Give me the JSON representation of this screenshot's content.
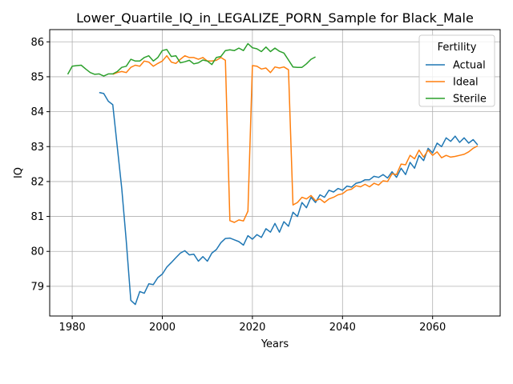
{
  "chart_data": {
    "type": "line",
    "title": "Lower_Quartile_IQ_in_LEGALIZE_PORN_Sample for Black_Male",
    "xlabel": "Years",
    "ylabel": "IQ",
    "xlim": [
      1975,
      2075
    ],
    "ylim": [
      78.15,
      86.35
    ],
    "xticks": [
      1980,
      2000,
      2020,
      2040,
      2060
    ],
    "yticks": [
      79,
      80,
      81,
      82,
      83,
      84,
      85,
      86
    ],
    "grid": true,
    "legend": {
      "title": "Fertility",
      "position": "top-right"
    },
    "series": [
      {
        "name": "Actual",
        "color": "#1f77b4",
        "x": [
          1986,
          1987,
          1988,
          1989,
          1990,
          1991,
          1992,
          1993,
          1994,
          1995,
          1996,
          1997,
          1998,
          1999,
          2000,
          2001,
          2002,
          2003,
          2004,
          2005,
          2006,
          2007,
          2008,
          2009,
          2010,
          2011,
          2012,
          2013,
          2014,
          2015,
          2016,
          2017,
          2018,
          2019,
          2020,
          2021,
          2022,
          2023,
          2024,
          2025,
          2026,
          2027,
          2028,
          2029,
          2030,
          2031,
          2032,
          2033,
          2034,
          2035,
          2036,
          2037,
          2038,
          2039,
          2040,
          2041,
          2042,
          2043,
          2044,
          2045,
          2046,
          2047,
          2048,
          2049,
          2050,
          2051,
          2052,
          2053,
          2054,
          2055,
          2056,
          2057,
          2058,
          2059,
          2060,
          2061,
          2062,
          2063,
          2064,
          2065,
          2066,
          2067,
          2068,
          2069,
          2070
        ],
        "y": [
          84.55,
          84.52,
          84.3,
          84.2,
          83.0,
          81.8,
          80.3,
          78.6,
          78.48,
          78.85,
          78.8,
          79.07,
          79.05,
          79.25,
          79.35,
          79.55,
          79.68,
          79.82,
          79.95,
          80.02,
          79.9,
          79.92,
          79.72,
          79.85,
          79.72,
          79.95,
          80.05,
          80.25,
          80.37,
          80.38,
          80.33,
          80.28,
          80.18,
          80.45,
          80.35,
          80.48,
          80.4,
          80.65,
          80.55,
          80.8,
          80.55,
          80.85,
          80.72,
          81.12,
          81.0,
          81.4,
          81.25,
          81.55,
          81.4,
          81.62,
          81.55,
          81.75,
          81.7,
          81.8,
          81.75,
          81.87,
          81.84,
          81.95,
          81.98,
          82.05,
          82.05,
          82.15,
          82.12,
          82.2,
          82.1,
          82.28,
          82.12,
          82.38,
          82.2,
          82.55,
          82.38,
          82.75,
          82.6,
          82.95,
          82.82,
          83.1,
          83.0,
          83.25,
          83.15,
          83.3,
          83.12,
          83.25,
          83.1,
          83.2,
          83.05
        ]
      },
      {
        "name": "Ideal",
        "color": "#ff7f0e",
        "x": [
          1989,
          1990,
          1991,
          1992,
          1993,
          1994,
          1995,
          1996,
          1997,
          1998,
          1999,
          2000,
          2001,
          2002,
          2003,
          2004,
          2005,
          2006,
          2007,
          2008,
          2009,
          2010,
          2011,
          2012,
          2013,
          2014,
          2015,
          2016,
          2017,
          2018,
          2019,
          2020,
          2021,
          2022,
          2023,
          2024,
          2025,
          2026,
          2027,
          2028,
          2029,
          2030,
          2031,
          2032,
          2033,
          2034,
          2035,
          2036,
          2037,
          2038,
          2039,
          2040,
          2041,
          2042,
          2043,
          2044,
          2045,
          2046,
          2047,
          2048,
          2049,
          2050,
          2051,
          2052,
          2053,
          2054,
          2055,
          2056,
          2057,
          2058,
          2059,
          2060,
          2061,
          2062,
          2063,
          2064,
          2065,
          2066,
          2067,
          2068,
          2069,
          2070
        ],
        "y": [
          85.07,
          85.12,
          85.15,
          85.12,
          85.27,
          85.33,
          85.3,
          85.45,
          85.42,
          85.3,
          85.38,
          85.45,
          85.6,
          85.42,
          85.38,
          85.5,
          85.6,
          85.55,
          85.55,
          85.5,
          85.55,
          85.45,
          85.45,
          85.47,
          85.55,
          85.47,
          80.88,
          80.83,
          80.9,
          80.87,
          81.15,
          85.32,
          85.3,
          85.22,
          85.25,
          85.12,
          85.28,
          85.25,
          85.28,
          85.2,
          81.33,
          81.4,
          81.55,
          81.5,
          81.6,
          81.45,
          81.5,
          81.4,
          81.5,
          81.55,
          81.62,
          81.65,
          81.75,
          81.78,
          81.88,
          81.85,
          81.92,
          81.85,
          81.95,
          81.9,
          82.02,
          82.0,
          82.22,
          82.2,
          82.5,
          82.48,
          82.75,
          82.65,
          82.9,
          82.7,
          82.9,
          82.75,
          82.85,
          82.68,
          82.75,
          82.7,
          82.72,
          82.75,
          82.78,
          82.85,
          82.95,
          83.02
        ]
      },
      {
        "name": "Sterile",
        "color": "#2ca02c",
        "x": [
          1979,
          1980,
          1981,
          1982,
          1983,
          1984,
          1985,
          1986,
          1987,
          1988,
          1989,
          1990,
          1991,
          1992,
          1993,
          1994,
          1995,
          1996,
          1997,
          1998,
          1999,
          2000,
          2001,
          2002,
          2003,
          2004,
          2005,
          2006,
          2007,
          2008,
          2009,
          2010,
          2011,
          2012,
          2013,
          2014,
          2015,
          2016,
          2017,
          2018,
          2019,
          2020,
          2021,
          2022,
          2023,
          2024,
          2025,
          2026,
          2027,
          2028,
          2029,
          2030,
          2031,
          2032,
          2033,
          2034
        ],
        "y": [
          85.07,
          85.3,
          85.32,
          85.33,
          85.22,
          85.12,
          85.07,
          85.08,
          85.02,
          85.08,
          85.08,
          85.15,
          85.27,
          85.3,
          85.5,
          85.45,
          85.45,
          85.55,
          85.6,
          85.45,
          85.55,
          85.75,
          85.78,
          85.58,
          85.6,
          85.4,
          85.43,
          85.47,
          85.37,
          85.4,
          85.48,
          85.45,
          85.35,
          85.55,
          85.58,
          85.75,
          85.77,
          85.75,
          85.82,
          85.75,
          85.95,
          85.83,
          85.8,
          85.72,
          85.85,
          85.72,
          85.82,
          85.73,
          85.68,
          85.48,
          85.28,
          85.27,
          85.27,
          85.37,
          85.5,
          85.57
        ]
      }
    ]
  }
}
